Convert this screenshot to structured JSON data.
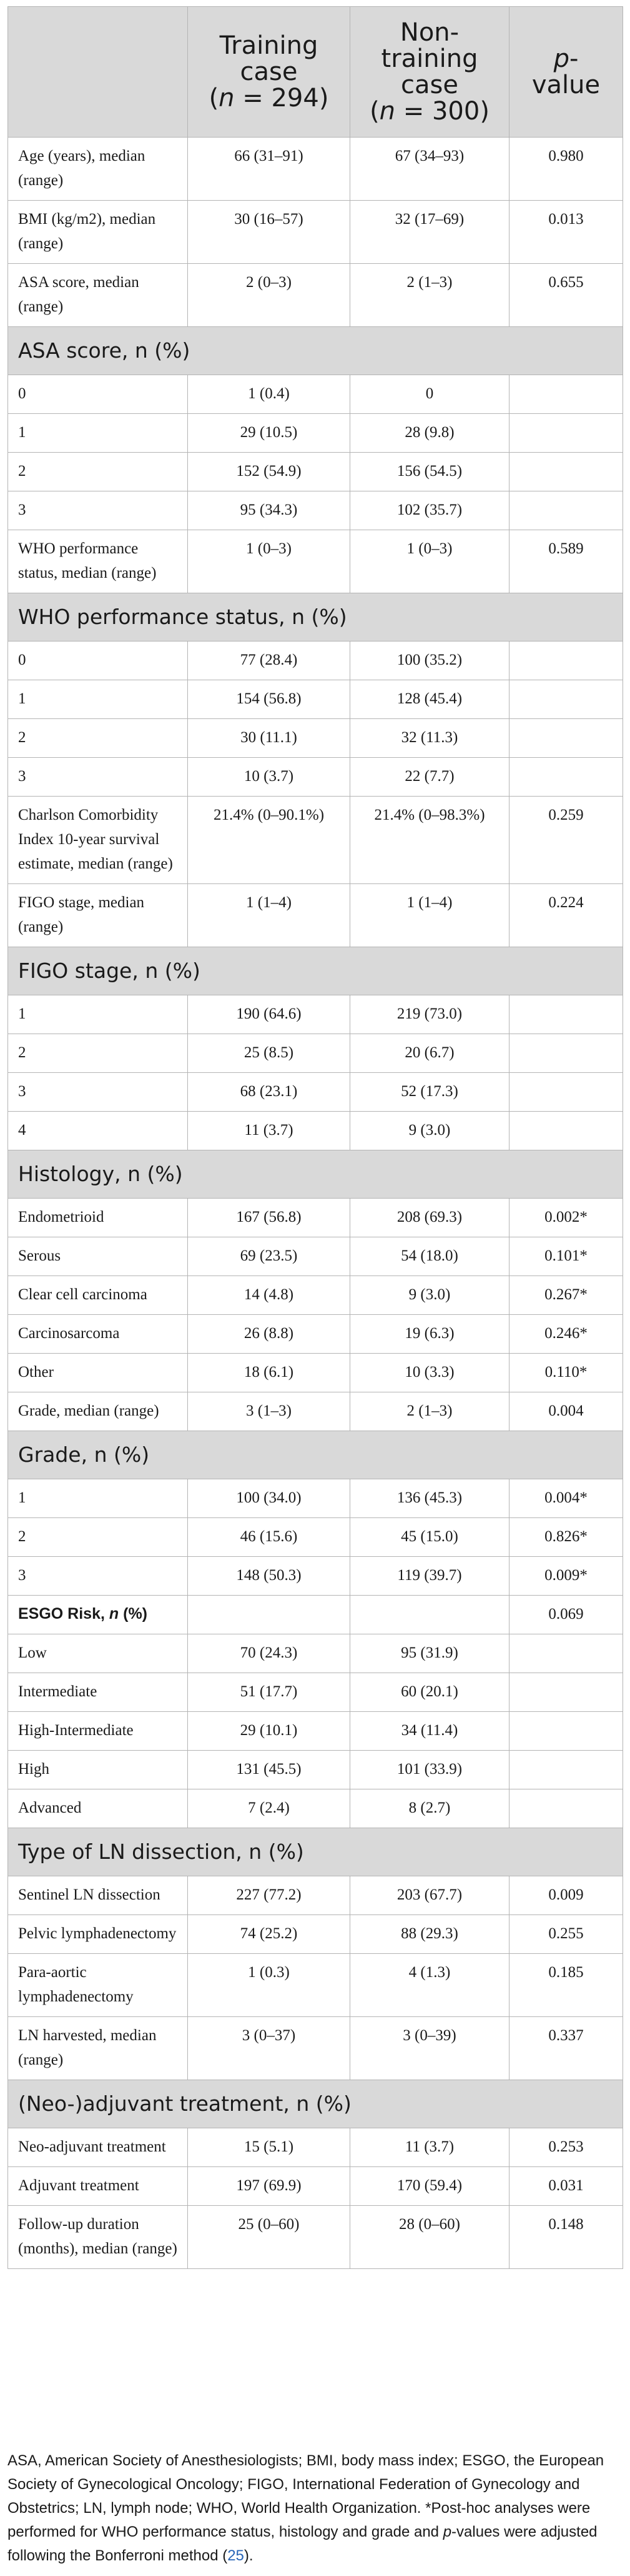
{
  "header": {
    "col1": "",
    "col2_line1": "Training",
    "col2_line2a": "case",
    "col2_line2b": "(",
    "col2_n": "n",
    "col2_val": " = 294)",
    "col3_line1": "Non-",
    "col3_line2": "training",
    "col3_line3": "case",
    "col3_line4a": "(",
    "col3_n": "n",
    "col3_val": " = 300)",
    "col4_p": "p",
    "col4_rest": "-",
    "col4_line2": "value"
  },
  "rows": [
    {
      "type": "data",
      "label": "Age (years), median (range)",
      "training": "66 (31–91)",
      "non_training": "67 (34–93)",
      "p": "0.980"
    },
    {
      "type": "data",
      "label": "BMI (kg/m2), median (range)",
      "training": "30 (16–57)",
      "non_training": "32 (17–69)",
      "p": "0.013"
    },
    {
      "type": "data",
      "label": "ASA score, median (range)",
      "training": "2 (0–3)",
      "non_training": "2 (1–3)",
      "p": "0.655"
    },
    {
      "type": "section",
      "label": "ASA score, n (%)"
    },
    {
      "type": "data",
      "label": "0",
      "training": "1 (0.4)",
      "non_training": "0",
      "p": ""
    },
    {
      "type": "data",
      "label": "1",
      "training": "29 (10.5)",
      "non_training": "28 (9.8)",
      "p": ""
    },
    {
      "type": "data",
      "label": "2",
      "training": "152 (54.9)",
      "non_training": "156 (54.5)",
      "p": ""
    },
    {
      "type": "data",
      "label": "3",
      "training": "95 (34.3)",
      "non_training": "102 (35.7)",
      "p": ""
    },
    {
      "type": "data",
      "label": "WHO performance status, median (range)",
      "training": "1 (0–3)",
      "non_training": "1 (0–3)",
      "p": "0.589"
    },
    {
      "type": "section",
      "label": "WHO performance status, n (%)"
    },
    {
      "type": "data",
      "label": "0",
      "training": "77 (28.4)",
      "non_training": "100 (35.2)",
      "p": ""
    },
    {
      "type": "data",
      "label": "1",
      "training": "154 (56.8)",
      "non_training": "128 (45.4)",
      "p": ""
    },
    {
      "type": "data",
      "label": "2",
      "training": "30 (11.1)",
      "non_training": "32 (11.3)",
      "p": ""
    },
    {
      "type": "data",
      "label": "3",
      "training": "10 (3.7)",
      "non_training": "22 (7.7)",
      "p": ""
    },
    {
      "type": "data",
      "label": "Charlson Comorbidity Index 10-year survival estimate, median (range)",
      "training": "21.4% (0–90.1%)",
      "non_training": "21.4% (0–98.3%)",
      "p": "0.259"
    },
    {
      "type": "data",
      "label": "FIGO stage, median (range)",
      "training": "1 (1–4)",
      "non_training": "1 (1–4)",
      "p": "0.224"
    },
    {
      "type": "section",
      "label": "FIGO stage, n (%)"
    },
    {
      "type": "data",
      "label": "1",
      "training": "190 (64.6)",
      "non_training": "219 (73.0)",
      "p": ""
    },
    {
      "type": "data",
      "label": "2",
      "training": "25 (8.5)",
      "non_training": "20 (6.7)",
      "p": ""
    },
    {
      "type": "data",
      "label": "3",
      "training": "68 (23.1)",
      "non_training": "52 (17.3)",
      "p": ""
    },
    {
      "type": "data",
      "label": "4",
      "training": "11 (3.7)",
      "non_training": "9 (3.0)",
      "p": ""
    },
    {
      "type": "section",
      "label": "Histology, n (%)"
    },
    {
      "type": "data",
      "label": "Endometrioid",
      "training": "167 (56.8)",
      "non_training": "208 (69.3)",
      "p": "0.002*"
    },
    {
      "type": "data",
      "label": "Serous",
      "training": "69 (23.5)",
      "non_training": "54 (18.0)",
      "p": "0.101*"
    },
    {
      "type": "data",
      "label": "Clear cell carcinoma",
      "training": "14 (4.8)",
      "non_training": "9 (3.0)",
      "p": "0.267*"
    },
    {
      "type": "data",
      "label": "Carcinosarcoma",
      "training": "26 (8.8)",
      "non_training": "19 (6.3)",
      "p": "0.246*"
    },
    {
      "type": "data",
      "label": "Other",
      "training": "18 (6.1)",
      "non_training": "10 (3.3)",
      "p": "0.110*"
    },
    {
      "type": "data",
      "label": "Grade, median (range)",
      "training": "3 (1–3)",
      "non_training": "2 (1–3)",
      "p": "0.004"
    },
    {
      "type": "section",
      "label": "Grade, n (%)"
    },
    {
      "type": "data",
      "label": "1",
      "training": "100 (34.0)",
      "non_training": "136 (45.3)",
      "p": "0.004*"
    },
    {
      "type": "data",
      "label": "2",
      "training": "46 (15.6)",
      "non_training": "45 (15.0)",
      "p": "0.826*"
    },
    {
      "type": "data",
      "label": "3",
      "training": "148 (50.3)",
      "non_training": "119 (39.7)",
      "p": "0.009*"
    },
    {
      "type": "esgo",
      "label_a": "ESGO Risk, ",
      "label_n": "n",
      "label_b": " (%)",
      "training": "",
      "non_training": "",
      "p": "0.069"
    },
    {
      "type": "data",
      "label": "Low",
      "training": "70 (24.3)",
      "non_training": "95 (31.9)",
      "p": ""
    },
    {
      "type": "data",
      "label": "Intermediate",
      "training": "51 (17.7)",
      "non_training": "60 (20.1)",
      "p": ""
    },
    {
      "type": "data",
      "label": "High-Intermediate",
      "training": "29 (10.1)",
      "non_training": "34 (11.4)",
      "p": ""
    },
    {
      "type": "data",
      "label": "High",
      "training": "131 (45.5)",
      "non_training": "101 (33.9)",
      "p": ""
    },
    {
      "type": "data",
      "label": "Advanced",
      "training": "7 (2.4)",
      "non_training": "8 (2.7)",
      "p": ""
    },
    {
      "type": "section",
      "label": "Type of LN dissection, n (%)"
    },
    {
      "type": "data",
      "label": "Sentinel LN dissection",
      "training": "227 (77.2)",
      "non_training": "203 (67.7)",
      "p": "0.009"
    },
    {
      "type": "data",
      "label": "Pelvic lymphadenectomy",
      "training": "74 (25.2)",
      "non_training": "88 (29.3)",
      "p": "0.255"
    },
    {
      "type": "data",
      "label": "Para-aortic lymphadenectomy",
      "training": "1 (0.3)",
      "non_training": "4 (1.3)",
      "p": "0.185"
    },
    {
      "type": "data",
      "label": "LN harvested, median (range)",
      "training": "3 (0–37)",
      "non_training": "3 (0–39)",
      "p": "0.337"
    },
    {
      "type": "section",
      "label": "(Neo-)adjuvant treatment, n (%)"
    },
    {
      "type": "data",
      "label": "Neo-adjuvant treatment",
      "training": "15 (5.1)",
      "non_training": "11 (3.7)",
      "p": "0.253"
    },
    {
      "type": "data",
      "label": "Adjuvant treatment",
      "training": "197 (69.9)",
      "non_training": "170 (59.4)",
      "p": "0.031"
    },
    {
      "type": "data",
      "label": "Follow-up duration (months), median (range)",
      "training": "25 (0–60)",
      "non_training": "28 (0–60)",
      "p": "0.148"
    }
  ],
  "footnote": {
    "part1": "ASA, American Society of Anesthesiologists; BMI, body mass index; ESGO, the European Society of Gynecological Oncology; FIGO, International Federation of Gynecology and Obstetrics; LN, lymph node; WHO, World Health Organization. *Post-hoc analyses were performed for WHO performance status, histology and grade and ",
    "p": "p",
    "part2": "-values were adjusted following the Bonferroni method (",
    "ref": "25",
    "part3": ")."
  }
}
